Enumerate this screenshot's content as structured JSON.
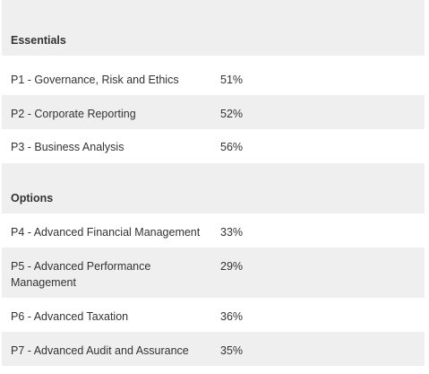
{
  "essentials": {
    "heading": "Essentials",
    "rows": [
      {
        "paper": "P1  - Governance, Risk and Ethics",
        "rate": "51%"
      },
      {
        "paper": "P2 - Corporate Reporting",
        "rate": "52%"
      },
      {
        "paper": "P3 - Business Analysis",
        "rate": "56%"
      }
    ]
  },
  "options": {
    "heading": "Options",
    "rows": [
      {
        "paper": "P4 - Advanced Financial Management",
        "rate": "33%"
      },
      {
        "paper": "P5 - Advanced Performance Management",
        "rate": "29%"
      },
      {
        "paper": "P6 - Advanced Taxation",
        "rate": "36%"
      },
      {
        "paper": "P7 - Advanced Audit and Assurance",
        "rate": "35%"
      }
    ]
  },
  "colors": {
    "shaded_row": "#efefef",
    "text": "#333333"
  }
}
